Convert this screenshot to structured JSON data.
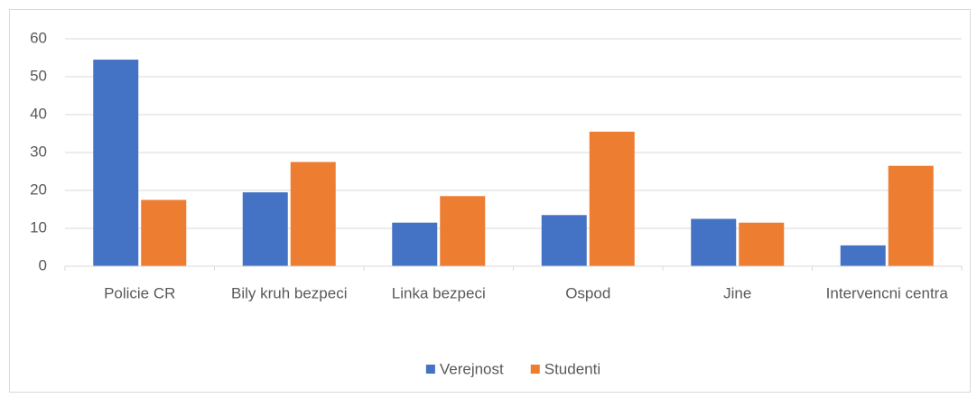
{
  "chart_data": {
    "type": "bar",
    "categories": [
      "Policie CR",
      "Bily kruh bezpeci",
      "Linka bezpeci",
      "Ospod",
      "Jine",
      "Intervencni centra"
    ],
    "series": [
      {
        "name": "Verejnost",
        "color": "#4472c4",
        "values": [
          54.5,
          19.5,
          11.5,
          13.5,
          12.5,
          5.5
        ]
      },
      {
        "name": "Studenti",
        "color": "#ed7d31",
        "values": [
          17.5,
          27.5,
          18.5,
          35.5,
          11.5,
          26.5
        ]
      }
    ],
    "ylim": [
      0,
      60
    ],
    "yticks": [
      0,
      10,
      20,
      30,
      40,
      50,
      60
    ],
    "grid": true,
    "legend": "bottom"
  }
}
